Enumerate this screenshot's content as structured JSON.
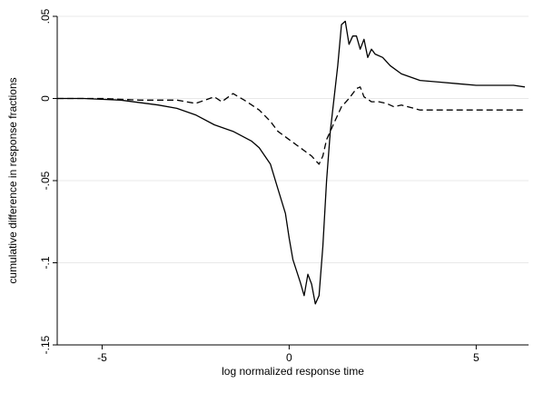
{
  "chart_data": {
    "type": "line",
    "title": "",
    "xlabel": "log normalized response time",
    "ylabel": "cumulative difference in response fractions",
    "xlim": [
      -6.2,
      6.4
    ],
    "ylim": [
      -0.15,
      0.05
    ],
    "x_ticks": [
      -5,
      0,
      5
    ],
    "x_tick_labels": [
      "-5",
      "0",
      "5"
    ],
    "y_ticks": [
      -0.15,
      -0.1,
      -0.05,
      0,
      0.05
    ],
    "y_tick_labels": [
      "-.15",
      "-.1",
      "-.05",
      "0",
      ".05"
    ],
    "grid": "horizontal",
    "legend": "none",
    "series": [
      {
        "style": "solid",
        "color": "#000000",
        "x": [
          -6.2,
          -5.5,
          -4.5,
          -3.5,
          -3.0,
          -2.5,
          -2.0,
          -1.5,
          -1.0,
          -0.8,
          -0.5,
          -0.3,
          -0.1,
          0.0,
          0.1,
          0.2,
          0.3,
          0.4,
          0.5,
          0.6,
          0.7,
          0.8,
          0.9,
          1.0,
          1.1,
          1.2,
          1.3,
          1.4,
          1.5,
          1.6,
          1.7,
          1.8,
          1.9,
          2.0,
          2.1,
          2.2,
          2.3,
          2.5,
          2.7,
          3.0,
          3.5,
          4.0,
          4.5,
          5.0,
          5.5,
          6.0,
          6.3
        ],
        "y": [
          0.0,
          0.0,
          -0.001,
          -0.004,
          -0.006,
          -0.01,
          -0.016,
          -0.02,
          -0.026,
          -0.03,
          -0.04,
          -0.055,
          -0.07,
          -0.085,
          -0.098,
          -0.105,
          -0.112,
          -0.12,
          -0.107,
          -0.113,
          -0.125,
          -0.12,
          -0.09,
          -0.05,
          -0.02,
          0.0,
          0.02,
          0.045,
          0.047,
          0.033,
          0.038,
          0.038,
          0.03,
          0.036,
          0.025,
          0.03,
          0.027,
          0.025,
          0.02,
          0.015,
          0.011,
          0.01,
          0.009,
          0.008,
          0.008,
          0.008,
          0.007
        ]
      },
      {
        "style": "dashed",
        "color": "#000000",
        "x": [
          -6.2,
          -5.0,
          -4.0,
          -3.0,
          -2.5,
          -2.0,
          -1.8,
          -1.5,
          -1.2,
          -1.0,
          -0.8,
          -0.5,
          -0.3,
          0.0,
          0.3,
          0.6,
          0.8,
          0.9,
          1.0,
          1.2,
          1.4,
          1.6,
          1.8,
          1.9,
          2.0,
          2.2,
          2.4,
          2.6,
          2.8,
          3.0,
          3.5,
          4.0,
          5.0,
          6.3
        ],
        "y": [
          0.0,
          0.0,
          -0.001,
          -0.001,
          -0.003,
          0.001,
          -0.002,
          0.003,
          -0.001,
          -0.004,
          -0.007,
          -0.014,
          -0.02,
          -0.025,
          -0.03,
          -0.035,
          -0.04,
          -0.035,
          -0.025,
          -0.015,
          -0.005,
          0.0,
          0.006,
          0.007,
          0.001,
          -0.002,
          -0.002,
          -0.003,
          -0.005,
          -0.004,
          -0.007,
          -0.007,
          -0.007,
          -0.007
        ]
      }
    ]
  }
}
